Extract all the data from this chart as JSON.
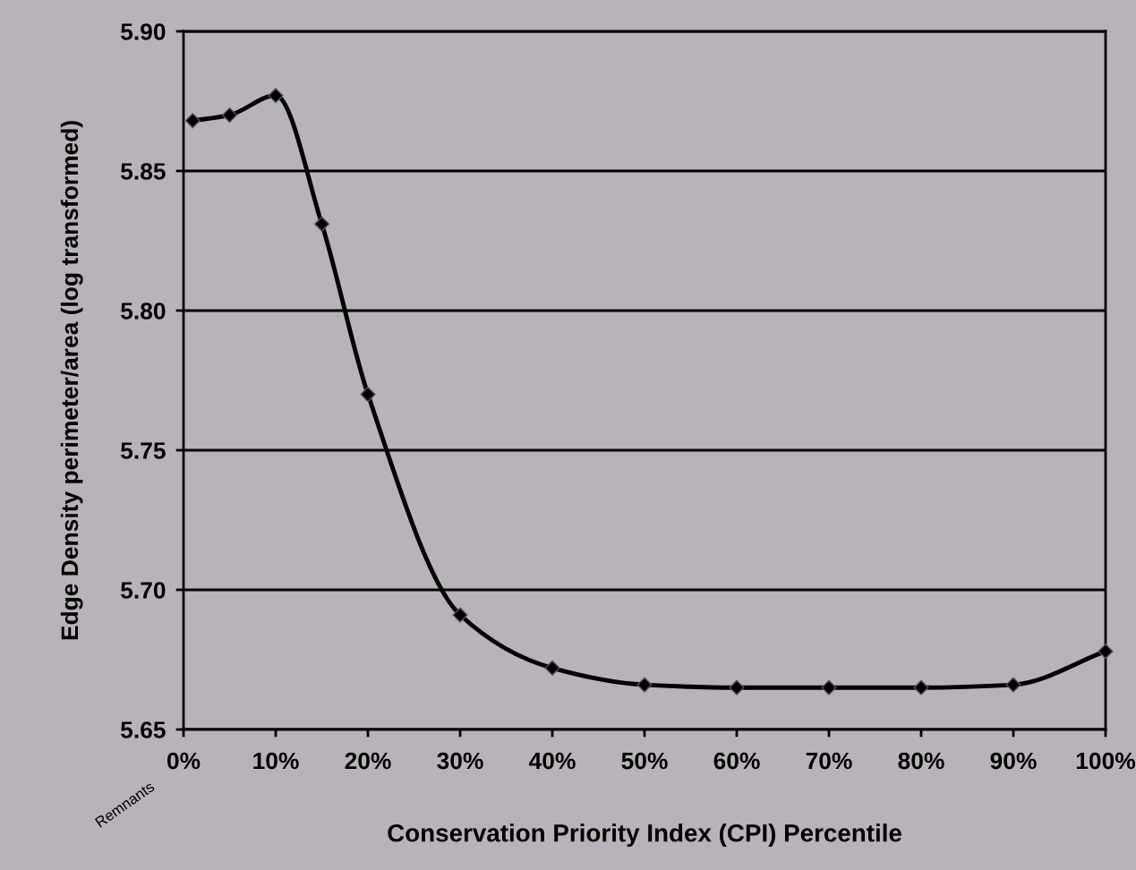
{
  "chart_data": {
    "type": "line",
    "xlabel": "Conservation Priority Index (CPI) Percentile",
    "ylabel": "Edge Density perimeter/area (log transformed)",
    "x": [
      1,
      5,
      10,
      15,
      20,
      30,
      40,
      50,
      60,
      70,
      80,
      90,
      100
    ],
    "series": [
      {
        "color": "#000000",
        "values": [
          5.868,
          5.87,
          5.877,
          5.831,
          5.77,
          5.691,
          5.672,
          5.666,
          5.665,
          5.665,
          5.665,
          5.666,
          5.678
        ]
      }
    ],
    "xlim": [
      0,
      100
    ],
    "xticks": [
      {
        "value": 0,
        "label": "0%"
      },
      {
        "value": 10,
        "label": "10%"
      },
      {
        "value": 20,
        "label": "20%"
      },
      {
        "value": 30,
        "label": "30%"
      },
      {
        "value": 40,
        "label": "40%"
      },
      {
        "value": 50,
        "label": "50%"
      },
      {
        "value": 60,
        "label": "60%"
      },
      {
        "value": 70,
        "label": "70%"
      },
      {
        "value": 80,
        "label": "80%"
      },
      {
        "value": 90,
        "label": "90%"
      },
      {
        "value": 100,
        "label": "100%"
      }
    ],
    "ylim": [
      5.65,
      5.9
    ],
    "yticks": [
      {
        "value": 5.65,
        "label": "5.65"
      },
      {
        "value": 5.7,
        "label": "5.70"
      },
      {
        "value": 5.75,
        "label": "5.75"
      },
      {
        "value": 5.8,
        "label": "5.80"
      },
      {
        "value": 5.85,
        "label": "5.85"
      },
      {
        "value": 5.9,
        "label": "5.90"
      }
    ],
    "annotations": [
      "Remnants"
    ],
    "grid": "y",
    "marker": "diamond",
    "line_style": "solid",
    "legend": false
  }
}
